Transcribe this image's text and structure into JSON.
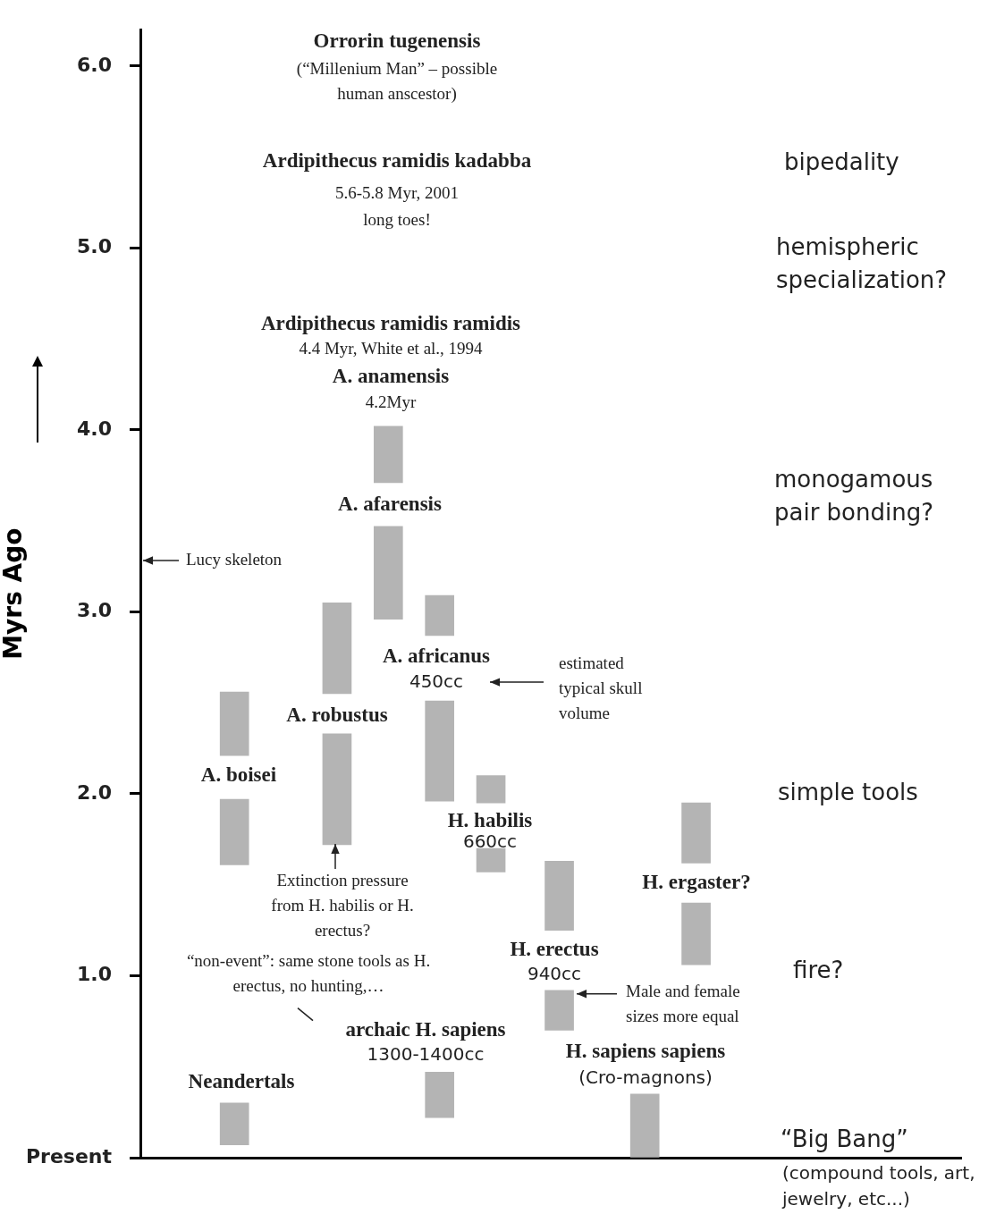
{
  "chart_data": {
    "type": "bar",
    "ylabel": "Myrs Ago",
    "tick_labels": "y",
    "categories": [
      null,
      null,
      null,
      null,
      null,
      null,
      null,
      null,
      null,
      null,
      null,
      null,
      null,
      null,
      null,
      null,
      null,
      null,
      null,
      null,
      null,
      null,
      null,
      null,
      null,
      null,
      null,
      null,
      null,
      null,
      null,
      null,
      null,
      null,
      null,
      null,
      null,
      null,
      null,
      null,
      null,
      null,
      null,
      null,
      null,
      null,
      null,
      null
    ],
    "ylim": [
      0,
      6.2
    ],
    "yticks": [
      {
        "value": 0,
        "label": "Present"
      },
      {
        "value": 1,
        "label": "1.0"
      },
      {
        "value": 2,
        "label": "2.0"
      },
      {
        "value": 3,
        "label": "3.0"
      },
      {
        "value": 4,
        "label": "4.0"
      },
      {
        "value": 5,
        "label": "5.0"
      },
      {
        "value": 6,
        "label": "6.0"
      }
    ],
    "series": [
      {
        "color": "#b4b4b4",
        "base": [
          null,
          null,
          null,
          null,
          null,
          2.21,
          null,
          null,
          null,
          null,
          null,
          2.55,
          null,
          null,
          3.71,
          null,
          null,
          2.87,
          null,
          null,
          1.95,
          null,
          null,
          null,
          1.25,
          null,
          null,
          null,
          null,
          0,
          null,
          null,
          1.62,
          null,
          null,
          null,
          null,
          null,
          null,
          null,
          null,
          null,
          null,
          null,
          null,
          null,
          null,
          null
        ],
        "values": [
          null,
          null,
          null,
          null,
          null,
          0.35,
          null,
          null,
          null,
          null,
          null,
          0.5,
          null,
          null,
          0.31,
          null,
          null,
          0.22,
          null,
          null,
          0.15,
          null,
          null,
          null,
          0.38,
          null,
          null,
          null,
          null,
          0.35,
          null,
          null,
          0.33,
          null,
          null,
          null,
          null,
          null,
          null,
          null,
          null,
          null,
          null,
          null,
          null,
          null,
          null,
          null
        ]
      },
      {
        "color": "#b4b4b4",
        "base": [
          null,
          null,
          null,
          null,
          null,
          1.61,
          null,
          null,
          null,
          null,
          null,
          1.72,
          null,
          null,
          2.96,
          null,
          null,
          1.96,
          null,
          null,
          1.57,
          null,
          null,
          null,
          0.7,
          null,
          null,
          null,
          null,
          null,
          null,
          null,
          1.06,
          null,
          null,
          null,
          null,
          null,
          null,
          null,
          null,
          null,
          null,
          null,
          null,
          null,
          null,
          null
        ],
        "values": [
          null,
          null,
          null,
          null,
          null,
          0.36,
          null,
          null,
          null,
          null,
          null,
          0.61,
          null,
          null,
          0.51,
          null,
          null,
          0.55,
          null,
          null,
          0.13,
          null,
          null,
          null,
          0.22,
          null,
          null,
          null,
          null,
          null,
          null,
          null,
          0.34,
          null,
          null,
          null,
          null,
          null,
          null,
          null,
          null,
          null,
          null,
          null,
          null,
          null,
          null,
          null
        ]
      },
      {
        "color": "#b4b4b4",
        "base": [
          null,
          null,
          null,
          null,
          null,
          0.07,
          null,
          null,
          null,
          null,
          null,
          null,
          null,
          null,
          null,
          null,
          null,
          0.22,
          null,
          null,
          null,
          null,
          null,
          null,
          null,
          null,
          null,
          null,
          null,
          null,
          null,
          null,
          null,
          null,
          null,
          null,
          null,
          null,
          null,
          null,
          null,
          null,
          null,
          null,
          null,
          null,
          null,
          null
        ],
        "values": [
          null,
          null,
          null,
          null,
          null,
          0.23,
          null,
          null,
          null,
          null,
          null,
          null,
          null,
          null,
          null,
          null,
          null,
          0.25,
          null,
          null,
          null,
          null,
          null,
          null,
          null,
          null,
          null,
          null,
          null,
          null,
          null,
          null,
          null,
          null,
          null,
          null,
          null,
          null,
          null,
          null,
          null,
          null,
          null,
          null,
          null,
          null,
          null,
          null
        ]
      }
    ],
    "annotations": [
      "Orrorin tugenensis",
      "(“Millenium Man” – possible human anscestor)",
      "Ardipithecus ramidis kadabba",
      "5.6-5.8 Myr, 2001",
      "long toes!",
      "Ardipithecus ramidis ramidis",
      "4.4 Myr, White et al., 1994",
      "A. anamensis",
      "4.2Myr",
      "A. afarensis",
      "Lucy skeleton",
      "A. africanus",
      "450cc",
      "estimated typical skull volume",
      "A. robustus",
      "A. boisei",
      "H. habilis",
      "660cc",
      "Extinction pressure from H. habilis or H. erectus?",
      "H. ergaster?",
      "H. erectus",
      "“non-event”: same stone tools as H. erectus, no hunting,…",
      "940cc",
      "Male and female sizes more equal",
      "archaic H. sapiens",
      "1300-1400cc",
      "H. sapiens sapiens",
      "(Cro-magnons)",
      "Neandertals",
      "bipedality",
      "hemispheric specialization?",
      "monogamous pair bonding?",
      "simple tools",
      "fire?",
      "“Big Bang”",
      "(compound tools, art, jewelry, etc...)"
    ]
  }
}
